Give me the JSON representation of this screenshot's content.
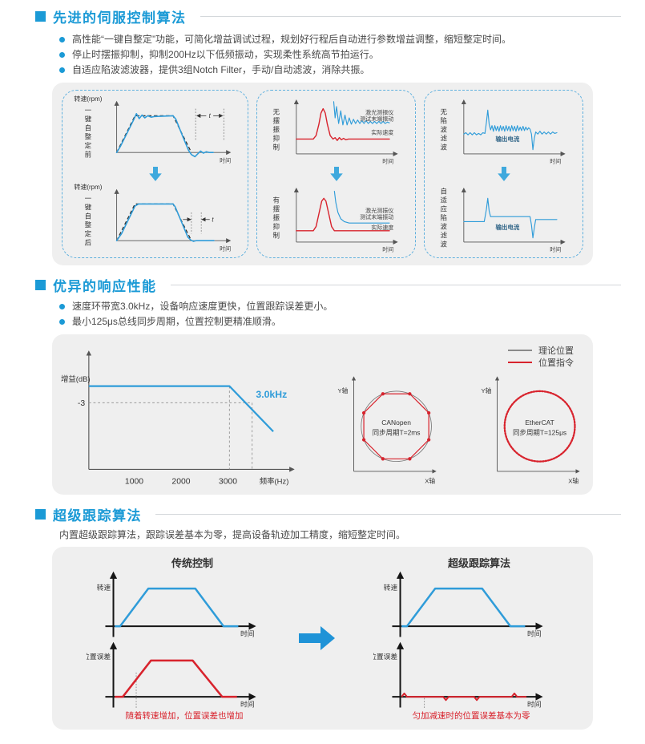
{
  "colors": {
    "accent": "#1b9ad6",
    "red": "#d8232d",
    "blue_line": "#2f9cd9",
    "gray_line": "#8a8a8a",
    "panel_bg": "#efefef",
    "dashed_box_border": "#5fb0de"
  },
  "sections": {
    "s1": {
      "heading": "先进的伺服控制算法",
      "bullets": [
        "高性能“一键自整定”功能，可简化增益调试过程，规划好行程后自动进行参数增益调整，缩短整定时间。",
        "停止时摆振抑制，抑制200Hz以下低频振动，实现柔性系统高节拍运行。",
        "自适应陷波滤波器，提供3组Notch Filter，手动/自动滤波，消除共振。"
      ]
    },
    "s2": {
      "heading": "优异的响应性能",
      "bullets": [
        "速度环带宽3.0kHz，设备响应速度更快，位置跟踪误差更小。",
        "最小125μs总线同步周期，位置控制更精准顺滑。"
      ]
    },
    "s3": {
      "heading": "超级跟踪算法",
      "body": "内置超级跟踪算法，跟踪误差基本为零，提高设备轨迹加工精度，缩短整定时间。"
    }
  },
  "panel1": {
    "autotune": {
      "ylab": "转速(rpm)",
      "xlab": "时间",
      "t": "t",
      "before": {
        "vlab": "一键自整定前",
        "dashed": "20,82 46,30 100,30 126,82",
        "blue": "20,82 25,74 44,36 48,27 52,34 56,29 60,33 64,30 69,32 74,31 100,30 104,35 114,60 122,79 126,85 131,88 135,84 139,80 143,83 147,81 151,82 157,82"
      },
      "after": {
        "vlab": "一键自整定后",
        "dashed": "20,82 46,30 100,30 126,82",
        "blue": "20,82 27,72 46,33 51,30 100,30 103,34 121,77 125,81 129,83 133,82 158,82"
      }
    },
    "sway": {
      "xlab": "时间",
      "lbl_laser1": "激光测振仪",
      "lbl_laser2": "测试末端振动",
      "lbl_actual": "实际速度",
      "before": {
        "vlab": "无摆振抑制",
        "red": "18,63 42,63 46,58 50,42 53,26 56,20 59,26 62,42 66,58 70,63 73,61 76,65 79,61 82,64 85,62 88,64 92,63 150,63",
        "blue": "71,10 73,33 75,17 78,41 81,23 84,43 87,29 90,43 93,33 96,42 99,35 102,41 105,36 108,41 111,37 114,41 117,37 120,41 123,38 126,41 129,38 132,41 135,38 138,41 141,38 144,41 147,39 150,40"
      },
      "after": {
        "vlab": "有摆振抑制",
        "red": "18,68 42,68 46,62 50,44 54,26 57,22 60,26 64,44 68,62 72,68 150,68",
        "blue": "72,12 74,28 77,42 81,51 86,55 93,57 100,57 150,57"
      }
    },
    "notch": {
      "xlab": "时间",
      "lbl_current": "输出电流",
      "before": {
        "vlab": "无陷波滤波",
        "blue": "18,56 21,54 24,57 27,54 30,57 33,54 36,57 39,55 42,57 45,54 48,55 50,40 52,22 54,42 56,50 58,44 60,52 62,44 64,51 66,45 68,52 70,44 72,51 74,45 76,52 78,44 80,51 82,45 84,52 86,44 88,51 90,45 92,52 94,44 96,51 98,46 100,51 102,45 104,51 106,46 108,50 110,47 112,49 114,56 116,78 118,62 120,53 123,56 126,52 129,56 132,53 135,56 138,53 141,56 144,53 147,55 150,54"
      },
      "after": {
        "vlab": "自适应陷波滤波",
        "blue": "18,55 47,55 50,38 52,22 54,40 56,48 112,48 114,60 116,78 118,64 120,52 150,52"
      }
    }
  },
  "panel2": {
    "bode": {
      "ylab": "增益(dB)",
      "xlab": "频率(Hz)",
      "ticks": [
        "1000",
        "2000",
        "3000"
      ],
      "minus3": "-3",
      "bandwidth": "3.0kHz",
      "line": "38,60 224,60 282,120"
    },
    "legend": {
      "theory": "理论位置",
      "command": "位置指令"
    },
    "canopen": {
      "y": "Y轴",
      "x": "X轴",
      "name": "CANopen",
      "cycle": "同步周期T=2ms",
      "octagon": "149.7,70.2 118.8,39.3 75.2,39.3 44.3,70.2 44.3,113.8 75.2,144.7 118.8,144.7 149.7,113.8"
    },
    "ethercat": {
      "y": "Y轴",
      "x": "X轴",
      "name": "EtherCAT",
      "cycle": "同步周期T=125μs"
    }
  },
  "panel3": {
    "speed_lab": "转速",
    "err_lab": "位置误差",
    "xlab": "时间",
    "left": {
      "title": "传统控制",
      "speed": "42,86 50,86 92,30 162,30 204,86 226,86",
      "error": "42,86 54,86 96,32 158,32 202,86 224,86",
      "note": "随着转速增加，位置误差也增加"
    },
    "right": {
      "title": "超级跟踪算法",
      "speed": "42,86 50,86 92,30 162,30 204,86 226,86",
      "error": "42,86 46,81 50,86 104,86 108,91 112,86 150,86 154,91 158,86 206,86 210,81 214,86 228,86",
      "note": "匀加减速时的位置误差基本为零"
    }
  },
  "chart_data": [
    {
      "type": "line",
      "title": "一键自整定前/后",
      "xlabel": "时间",
      "ylabel": "转速(rpm)",
      "legend_position": "none",
      "annotation": "t",
      "description": "整定前速度曲线超调振荡，整定后贴合目标梯形曲线，整定时间t缩短"
    },
    {
      "type": "line",
      "title": "摆振抑制对比",
      "xlabel": "时间",
      "series": [
        {
          "name": "激光测振仪测试末端振动"
        },
        {
          "name": "实际速度"
        }
      ],
      "description": "无摆振抑制时末端振动衰减慢，有摆振抑制时快速收敛"
    },
    {
      "type": "line",
      "title": "陷波滤波对比",
      "xlabel": "时间",
      "series": [
        {
          "name": "输出电流"
        }
      ],
      "description": "无陷波滤波时电流含高频噪声，自适应陷波滤波后平滑"
    },
    {
      "type": "line",
      "title": "速度环带宽",
      "xlabel": "频率(Hz)",
      "ylabel": "增益(dB)",
      "x_ticks": [
        1000,
        2000,
        3000
      ],
      "bandwidth_hz": 3000,
      "cutoff_db": -3,
      "annotation": "3.0kHz"
    },
    {
      "type": "scatter",
      "title": "CANopen 同步周期T=2ms",
      "xlabel": "X轴",
      "ylabel": "Y轴",
      "legend": [
        "理论位置",
        "位置指令"
      ],
      "description": "理论位置为圆，位置指令呈八边形折线"
    },
    {
      "type": "scatter",
      "title": "EtherCAT 同步周期T=125μs",
      "xlabel": "X轴",
      "ylabel": "Y轴",
      "legend": [
        "理论位置",
        "位置指令"
      ],
      "description": "位置指令几乎与理论圆重合"
    },
    {
      "type": "line",
      "title": "传统控制 vs 超级跟踪算法",
      "xlabel": "时间",
      "description": "传统控制位置误差随转速增加；超级跟踪算法匀加减速时位置误差基本为零"
    }
  ]
}
